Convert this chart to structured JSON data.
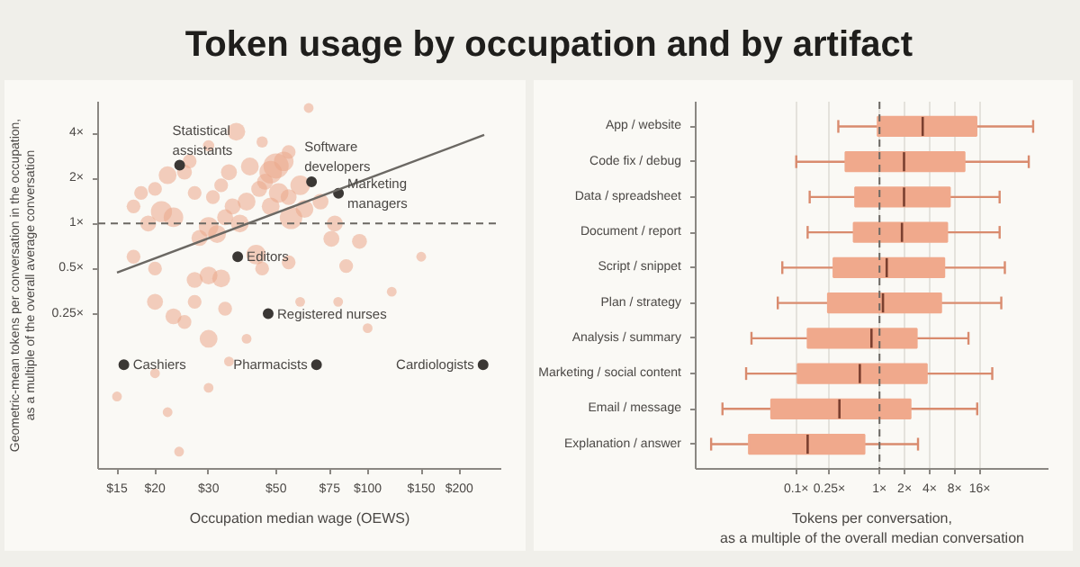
{
  "chart_data": [
    {
      "type": "bubble",
      "title": "Token usage by occupation and by artifact",
      "xlabel": "Occupation median wage (OEWS)",
      "ylabel": "Geometric-mean tokens per conversation in the occupation,\nas a multiple of the overall average conversation",
      "log": "xy",
      "grid": false,
      "xlim": [
        13,
        275
      ],
      "ylim": [
        0.023,
        6.5
      ],
      "xticks": [
        {
          "value": 15,
          "label": "$15"
        },
        {
          "value": 20,
          "label": "$20"
        },
        {
          "value": 30,
          "label": "$30"
        },
        {
          "value": 50,
          "label": "$50"
        },
        {
          "value": 75,
          "label": "$75"
        },
        {
          "value": 100,
          "label": "$100"
        },
        {
          "value": 150,
          "label": "$150"
        },
        {
          "value": 200,
          "label": "$200"
        }
      ],
      "yticks": [
        {
          "value": 0.25,
          "label": "0.25×"
        },
        {
          "value": 0.5,
          "label": "0.5×"
        },
        {
          "value": 1,
          "label": "1×"
        },
        {
          "value": 2,
          "label": "2×"
        },
        {
          "value": 4,
          "label": "4×"
        }
      ],
      "series": [
        {
          "type": "bubble",
          "color": "#eba88a",
          "x": [
            50,
            48,
            53,
            41,
            35,
            22,
            25,
            21,
            23,
            19,
            17,
            18,
            20,
            30,
            32,
            28,
            34,
            38,
            36,
            40,
            31,
            27,
            33,
            44,
            48,
            51,
            46,
            55,
            56,
            62,
            60,
            70,
            78,
            76,
            94,
            85,
            30,
            27,
            33,
            45,
            55,
            23,
            20,
            25,
            30,
            27,
            34,
            20,
            17,
            15,
            22,
            24,
            20,
            30,
            35,
            80,
            120,
            100,
            150,
            60,
            40,
            45,
            37,
            55,
            30,
            64,
            26,
            43
          ],
          "values": [
            2.42,
            2.2,
            2.6,
            2.4,
            2.2,
            2.1,
            2.2,
            1.2,
            1.1,
            1.0,
            1.3,
            1.6,
            1.7,
            0.95,
            0.85,
            0.8,
            1.1,
            1.0,
            1.3,
            1.4,
            1.5,
            1.6,
            1.8,
            1.7,
            1.3,
            1.6,
            1.9,
            1.5,
            1.09,
            1.25,
            1.8,
            1.4,
            1.0,
            0.79,
            0.76,
            0.52,
            0.45,
            0.42,
            0.43,
            0.5,
            0.55,
            0.24,
            0.3,
            0.22,
            0.17,
            0.3,
            0.27,
            0.5,
            0.6,
            0.07,
            0.055,
            0.03,
            0.1,
            0.08,
            0.12,
            0.3,
            0.35,
            0.2,
            0.6,
            0.3,
            0.17,
            3.5,
            4.1,
            3.0,
            3.3,
            5.9,
            2.6,
            0.62
          ],
          "sizes": [
            1,
            0.8,
            0.6,
            0.5,
            0.4,
            0.5,
            0.35,
            0.7,
            0.6,
            0.4,
            0.3,
            0.3,
            0.3,
            0.6,
            0.5,
            0.4,
            0.4,
            0.5,
            0.4,
            0.5,
            0.3,
            0.3,
            0.3,
            0.4,
            0.5,
            0.6,
            0.4,
            0.4,
            0.8,
            0.5,
            0.6,
            0.4,
            0.4,
            0.4,
            0.35,
            0.3,
            0.5,
            0.4,
            0.5,
            0.3,
            0.3,
            0.4,
            0.4,
            0.3,
            0.5,
            0.3,
            0.3,
            0.3,
            0.3,
            0.15,
            0.15,
            0.15,
            0.15,
            0.15,
            0.15,
            0.15,
            0.15,
            0.15,
            0.15,
            0.15,
            0.15,
            0.2,
            0.5,
            0.3,
            0.2,
            0.15,
            0.3,
            0.6
          ]
        },
        {
          "type": "scatter",
          "color": "#3b3835",
          "x": [
            24.1,
            65.4,
            80.2,
            37.4,
            47.1,
            15.8,
            67.9,
            239.6
          ],
          "values": [
            2.45,
            1.9,
            1.59,
            0.6,
            0.25,
            0.114,
            0.114,
            0.114
          ]
        },
        {
          "type": "line",
          "color": "#6b6863",
          "x": [
            15,
            241.6
          ],
          "values": [
            0.47,
            3.9
          ]
        }
      ],
      "ref_lines": [
        {
          "axis": "y",
          "value": 1,
          "line_style": "dashed"
        }
      ],
      "annotations": [
        {
          "text": "Statistical assistants",
          "x": 24.1,
          "y": 2.45
        },
        {
          "text": "Software developers",
          "x": 65.4,
          "y": 1.9
        },
        {
          "text": "Marketing managers",
          "x": 80.2,
          "y": 1.59
        },
        {
          "text": "Editors",
          "x": 37.4,
          "y": 0.6
        },
        {
          "text": "Registered nurses",
          "x": 47.1,
          "y": 0.25
        },
        {
          "text": "Cashiers",
          "x": 15.8,
          "y": 0.114
        },
        {
          "text": "Pharmacists",
          "x": 67.9,
          "y": 0.114
        },
        {
          "text": "Cardiologists",
          "x": 239.6,
          "y": 0.114
        }
      ]
    },
    {
      "type": "box",
      "orientation": "horizontal",
      "xlabel": "Tokens per conversation,\nas a multiple of the overall median conversation",
      "log": "x",
      "grid": "x",
      "xlim": [
        0.0062,
        107
      ],
      "xticks": [
        {
          "value": 0.1,
          "label": "0.1×"
        },
        {
          "value": 0.25,
          "label": "0.25×"
        },
        {
          "value": 1,
          "label": "1×"
        },
        {
          "value": 2,
          "label": "2×"
        },
        {
          "value": 4,
          "label": "4×"
        },
        {
          "value": 8,
          "label": "8×"
        },
        {
          "value": 16,
          "label": "16×"
        }
      ],
      "categories": [
        "App / website",
        "Code fix / debug",
        "Data / spreadsheet",
        "Document / report",
        "Script / snippet",
        "Plan / strategy",
        "Analysis / summary",
        "Marketing / social content",
        "Email / message",
        "Explanation / answer"
      ],
      "ref_lines": [
        {
          "axis": "x",
          "value": 1,
          "line_style": "dashed"
        }
      ],
      "series": [
        {
          "color": "#f0a98c",
          "boxes": [
            {
              "low": 0.32,
              "q1": 0.95,
              "median": 3.3,
              "q3": 14.6,
              "high": 70
            },
            {
              "low": 0.1,
              "q1": 0.39,
              "median": 1.97,
              "q3": 10.5,
              "high": 62
            },
            {
              "low": 0.145,
              "q1": 0.51,
              "median": 1.97,
              "q3": 7.0,
              "high": 27.7
            },
            {
              "low": 0.137,
              "q1": 0.49,
              "median": 1.86,
              "q3": 6.5,
              "high": 27.7
            },
            {
              "low": 0.068,
              "q1": 0.28,
              "median": 1.22,
              "q3": 6.0,
              "high": 32
            },
            {
              "low": 0.06,
              "q1": 0.24,
              "median": 1.1,
              "q3": 5.5,
              "high": 29
            },
            {
              "low": 0.029,
              "q1": 0.137,
              "median": 0.8,
              "q3": 2.8,
              "high": 11.7
            },
            {
              "low": 0.025,
              "q1": 0.104,
              "median": 0.58,
              "q3": 3.7,
              "high": 22.6
            },
            {
              "low": 0.013,
              "q1": 0.05,
              "median": 0.33,
              "q3": 2.36,
              "high": 14.9
            },
            {
              "low": 0.0095,
              "q1": 0.027,
              "median": 0.137,
              "q3": 0.66,
              "high": 2.9
            }
          ]
        }
      ]
    }
  ]
}
